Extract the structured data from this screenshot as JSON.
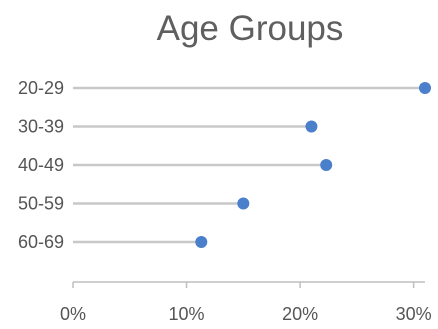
{
  "chart_data": {
    "type": "lollipop",
    "title": "Age Groups",
    "categories": [
      "20-29",
      "30-39",
      "40-49",
      "50-59",
      "60-69"
    ],
    "values": [
      31,
      21,
      22.3,
      15,
      11.3
    ],
    "value_unit": "%",
    "xlim": [
      0,
      31
    ],
    "x_ticks": [
      0,
      10,
      20,
      30
    ],
    "x_tick_labels": [
      "0%",
      "10%",
      "20%",
      "30%"
    ],
    "xlabel": "",
    "ylabel": "",
    "grid": false,
    "legend": "none",
    "colors": {
      "point": "#4a7fcc",
      "stem": "#c8c8c8",
      "axis": "#bfbfbf",
      "text": "#555555",
      "title": "#5f5f5f"
    }
  }
}
